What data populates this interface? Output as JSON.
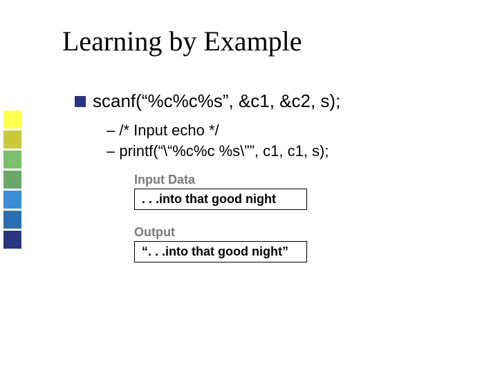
{
  "sidebar": {
    "colors": [
      "#ffff4d",
      "#c9c93a",
      "#7bbf6a",
      "#6aa86a",
      "#3a8fd6",
      "#2a6fb0",
      "#2b3480"
    ]
  },
  "title": "Learning by Example",
  "bullet": {
    "text": "scanf(“%c%c%s”, &c1, &c2, s);",
    "marker_color": "#2b3480"
  },
  "subitems": [
    "– /* Input echo */",
    "– printf(“\\“%c%c  %s\\””,  c1, c1, s);"
  ],
  "sections": [
    {
      "label": "Input Data",
      "value": ". . .into that good night"
    },
    {
      "label": "Output",
      "value": "“. . .into that good night”"
    }
  ]
}
